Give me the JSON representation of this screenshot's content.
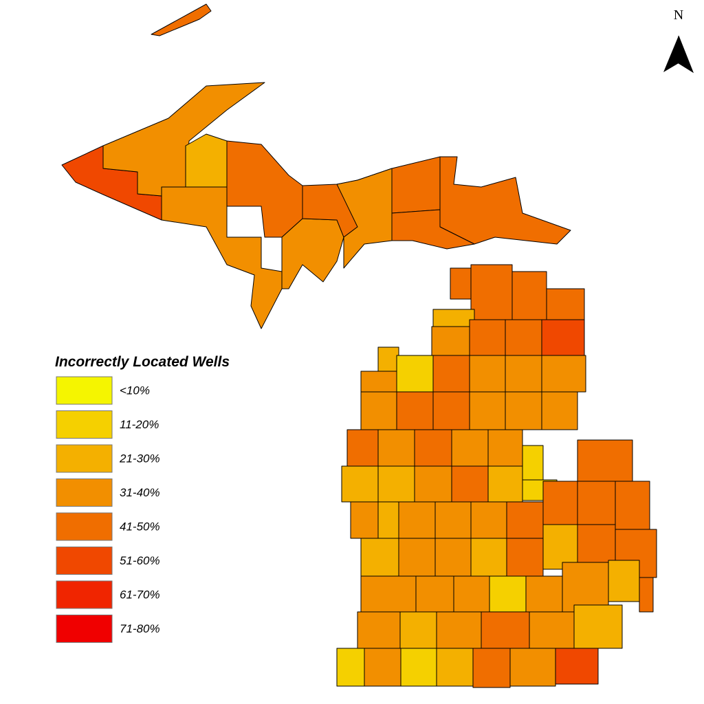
{
  "legend": {
    "title": "Incorrectly Located Wells",
    "items": [
      {
        "label": "<10%",
        "color": "#f5f500"
      },
      {
        "label": "11-20%",
        "color": "#f5d000"
      },
      {
        "label": "21-30%",
        "color": "#f4b000"
      },
      {
        "label": "31-40%",
        "color": "#f28f00"
      },
      {
        "label": "41-50%",
        "color": "#f06e00"
      },
      {
        "label": "51-60%",
        "color": "#f04800"
      },
      {
        "label": "61-70%",
        "color": "#f02500"
      },
      {
        "label": "71-80%",
        "color": "#f00000"
      }
    ]
  },
  "north_arrow": {
    "label": "N"
  }
}
